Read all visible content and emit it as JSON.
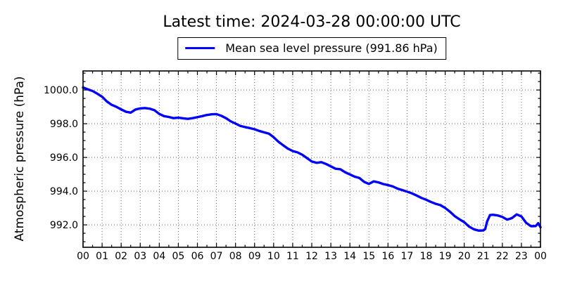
{
  "title": "Latest time: 2024-03-28 00:00:00 UTC",
  "colors": {
    "line": "#0000ff",
    "axis": "#000000",
    "grid": "#666666",
    "background": "#ffffff",
    "text": "#000000"
  },
  "chart_data": {
    "type": "line",
    "title": "Latest time: 2024-03-28 00:00:00 UTC",
    "xlabel": "",
    "ylabel": "Atmospheric pressure (hPa)",
    "legend": [
      "Mean sea level pressure (991.86 hPa)"
    ],
    "legend_position": "top-center",
    "grid": true,
    "grid_style": "dotted",
    "xlim": [
      0,
      24
    ],
    "ylim": [
      990.67,
      1001.13
    ],
    "x_ticks": [
      0,
      1,
      2,
      3,
      4,
      5,
      6,
      7,
      8,
      9,
      10,
      11,
      12,
      13,
      14,
      15,
      16,
      17,
      18,
      19,
      20,
      21,
      22,
      23,
      24
    ],
    "x_tick_labels": [
      "00",
      "01",
      "02",
      "03",
      "04",
      "05",
      "06",
      "07",
      "08",
      "09",
      "10",
      "11",
      "12",
      "13",
      "14",
      "15",
      "16",
      "17",
      "18",
      "19",
      "20",
      "21",
      "22",
      "23",
      "00"
    ],
    "y_ticks": [
      992.0,
      994.0,
      996.0,
      998.0,
      1000.0
    ],
    "y_tick_labels": [
      "992.0",
      "994.0",
      "996.0",
      "998.0",
      "1000.0"
    ],
    "series": [
      {
        "name": "Mean sea level pressure",
        "latest_value_hpa": 991.86,
        "color": "#0000ff",
        "x_hours": [
          0,
          0.25,
          0.5,
          0.75,
          1,
          1.25,
          1.5,
          1.75,
          2,
          2.25,
          2.5,
          2.75,
          3,
          3.25,
          3.5,
          3.75,
          4,
          4.25,
          4.5,
          4.75,
          5,
          5.25,
          5.5,
          5.75,
          6,
          6.25,
          6.5,
          6.75,
          7,
          7.25,
          7.5,
          7.75,
          8,
          8.25,
          8.5,
          8.75,
          9,
          9.25,
          9.5,
          9.75,
          10,
          10.25,
          10.5,
          10.75,
          11,
          11.25,
          11.5,
          11.75,
          12,
          12.25,
          12.5,
          12.75,
          13,
          13.25,
          13.5,
          13.75,
          14,
          14.25,
          14.5,
          14.75,
          15,
          15.25,
          15.5,
          15.75,
          16,
          16.25,
          16.5,
          16.75,
          17,
          17.25,
          17.5,
          17.75,
          18,
          18.25,
          18.5,
          18.75,
          19,
          19.25,
          19.5,
          19.75,
          20,
          20.25,
          20.5,
          20.75,
          21,
          21.1,
          21.2,
          21.35,
          21.5,
          21.75,
          22,
          22.25,
          22.5,
          22.75,
          23,
          23.25,
          23.5,
          23.75,
          23.88,
          24
        ],
        "y_hpa": [
          1000.15,
          1000.04,
          999.94,
          999.78,
          999.6,
          999.32,
          999.12,
          999.0,
          998.85,
          998.71,
          998.66,
          998.84,
          998.91,
          998.93,
          998.89,
          998.8,
          998.58,
          998.45,
          998.4,
          998.33,
          998.36,
          998.32,
          998.29,
          998.33,
          998.39,
          998.45,
          998.52,
          998.56,
          998.57,
          998.47,
          998.33,
          998.14,
          998.01,
          997.87,
          997.8,
          997.74,
          997.67,
          997.57,
          997.49,
          997.41,
          997.2,
          996.93,
          996.72,
          996.52,
          996.38,
          996.3,
          996.16,
          995.96,
          995.76,
          995.68,
          995.72,
          995.61,
          995.47,
          995.33,
          995.3,
          995.12,
          994.99,
          994.86,
          994.78,
          994.55,
          994.43,
          994.58,
          994.52,
          994.42,
          994.36,
          994.28,
          994.15,
          994.06,
          993.97,
          993.87,
          993.74,
          993.6,
          993.49,
          993.36,
          993.25,
          993.17,
          993.0,
          992.78,
          992.52,
          992.33,
          992.16,
          991.9,
          991.74,
          991.66,
          991.67,
          991.75,
          992.2,
          992.58,
          992.6,
          992.56,
          992.47,
          992.31,
          992.4,
          992.62,
          992.5,
          992.12,
          991.92,
          991.93,
          992.1,
          991.86
        ]
      }
    ]
  }
}
